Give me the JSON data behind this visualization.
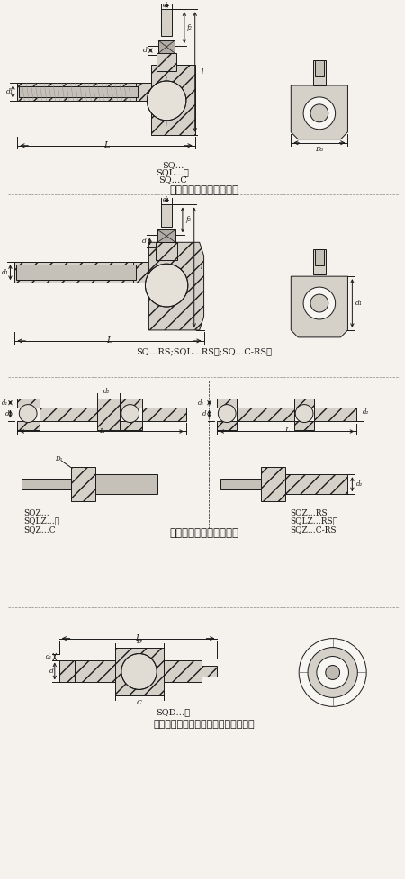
{
  "bg_color": "#f5f2ee",
  "line_color": "#1a1a1a",
  "fig_w": 4.5,
  "fig_h": 9.77,
  "dpi": 100,
  "sections": {
    "s1_title_lines": [
      "SQ…",
      "SQL…型",
      "SQ…C"
    ],
    "s1_title_bold": "弯杆型球头杆端关节轴承",
    "s2_title": "SQ…RS;SQL…RS型;SQ…C-RS型",
    "s3_title": "直杆型球头杆端关节轴承",
    "s3_left_labels": [
      "SQZ…",
      "SQLZ…型",
      "SQZ…C"
    ],
    "s3_right_labels": [
      "SQZ…RS",
      "SQLZ…RS型",
      "SQZ…C-RS"
    ],
    "s4_label": "SQD…型",
    "s4_title": "单杆型球头杆端关节轴承的产品系列表"
  }
}
